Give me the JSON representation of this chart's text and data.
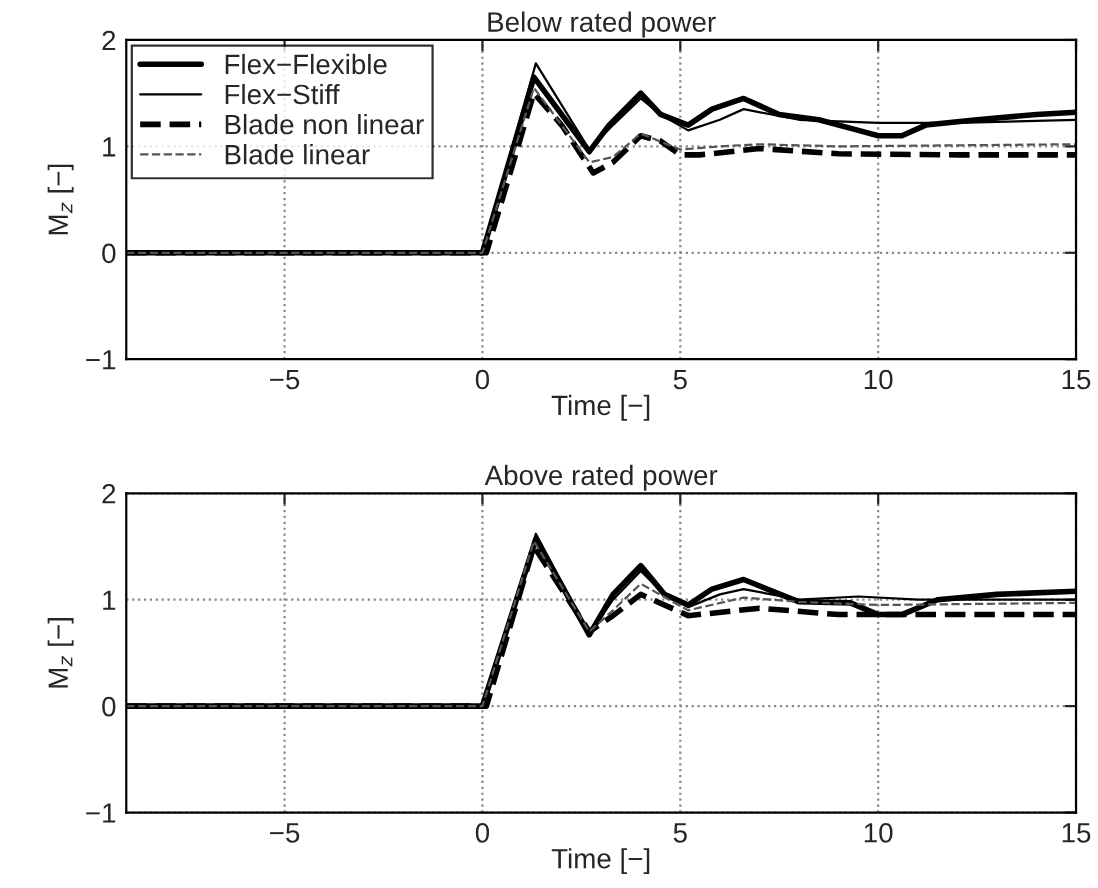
{
  "chart_data": [
    {
      "type": "line",
      "title": "Below rated power",
      "xlabel": "Time [−]",
      "ylabel": "M$_{z}$ [−]",
      "xlim": [
        -9,
        15
      ],
      "ylim": [
        -1,
        2
      ],
      "xticks": [
        {
          "value": -5,
          "label": "−5"
        },
        0,
        5,
        10,
        15
      ],
      "yticks": [
        {
          "value": -1,
          "label": "−1"
        },
        0,
        1,
        2
      ],
      "grid": true,
      "legend": "top left",
      "series": [
        {
          "name": "Flex−Flexible",
          "color": "#000000",
          "line_style": "solid",
          "x": [
            -9,
            0,
            1.3,
            2.7,
            3.2,
            4,
            4.5,
            5.2,
            5.8,
            6.6,
            7.5,
            8.5,
            9.5,
            10,
            10.6,
            11.2,
            12.5,
            14,
            15
          ],
          "values": [
            0,
            0,
            1.65,
            0.95,
            1.2,
            1.5,
            1.3,
            1.2,
            1.35,
            1.45,
            1.3,
            1.25,
            1.15,
            1.1,
            1.1,
            1.2,
            1.25,
            1.3,
            1.32
          ]
        },
        {
          "name": "Flex−Stiff",
          "color": "#000000",
          "line_style": "solid",
          "x": [
            -9,
            0,
            1.35,
            2.7,
            3.3,
            4,
            4.5,
            5.2,
            6,
            6.6,
            8,
            10,
            12,
            15
          ],
          "values": [
            0,
            0,
            1.78,
            0.97,
            1.2,
            1.45,
            1.3,
            1.15,
            1.25,
            1.35,
            1.25,
            1.22,
            1.22,
            1.25
          ]
        },
        {
          "name": "Blade non linear",
          "color": "#000000",
          "line_style": "dashed",
          "x": [
            -9,
            0.1,
            1.3,
            2,
            2.8,
            3.3,
            4,
            4.5,
            5,
            5.5,
            7,
            9,
            12,
            15
          ],
          "values": [
            0,
            0,
            1.5,
            1.2,
            0.75,
            0.85,
            1.1,
            1.05,
            0.92,
            0.92,
            0.98,
            0.93,
            0.92,
            0.92
          ]
        },
        {
          "name": "Blade linear",
          "color": "#555555",
          "line_style": "dashed",
          "x": [
            -9,
            0,
            1.3,
            2.7,
            3.3,
            4,
            5,
            6,
            7,
            9,
            15
          ],
          "values": [
            0,
            0,
            1.55,
            0.85,
            0.9,
            1.12,
            0.97,
            1.0,
            1.02,
            1.0,
            1.02
          ]
        }
      ]
    },
    {
      "type": "line",
      "title": "Above rated power",
      "xlabel": "Time [−]",
      "ylabel": "M$_{z}$ [−]",
      "xlim": [
        -9,
        15
      ],
      "ylim": [
        -1,
        2
      ],
      "xticks": [
        {
          "value": -5,
          "label": "−5"
        },
        0,
        5,
        10,
        15
      ],
      "yticks": [
        {
          "value": -1,
          "label": "−1"
        },
        0,
        1,
        2
      ],
      "grid": true,
      "series": [
        {
          "color": "#000000",
          "line_style": "solid",
          "x": [
            -9,
            0,
            1.35,
            2.7,
            3.3,
            4,
            4.6,
            5.2,
            5.8,
            6.6,
            8,
            9.3,
            10,
            10.6,
            11.5,
            13,
            15
          ],
          "values": [
            0,
            0,
            1.57,
            0.67,
            1.05,
            1.32,
            1.05,
            0.95,
            1.1,
            1.19,
            0.98,
            0.97,
            0.86,
            0.86,
            1.0,
            1.05,
            1.08
          ]
        },
        {
          "color": "#000000",
          "line_style": "solid",
          "x": [
            -9,
            0,
            1.35,
            2.7,
            3.3,
            4,
            4.6,
            5.2,
            6,
            6.6,
            8,
            9.5,
            11,
            15
          ],
          "values": [
            0,
            0,
            1.62,
            0.68,
            1.0,
            1.27,
            1.05,
            0.93,
            1.05,
            1.1,
            1.0,
            1.03,
            1.0,
            1.0
          ]
        },
        {
          "color": "#000000",
          "line_style": "dashed",
          "x": [
            -9,
            0.1,
            1.3,
            2.7,
            3.3,
            4,
            5.2,
            7,
            9,
            15
          ],
          "values": [
            0,
            0,
            1.5,
            0.7,
            0.85,
            1.05,
            0.85,
            0.92,
            0.86,
            0.86
          ]
        },
        {
          "color": "#555555",
          "line_style": "dashed",
          "x": [
            -9,
            0,
            1.3,
            2.7,
            3.3,
            4,
            5.2,
            6.6,
            8,
            10,
            15
          ],
          "values": [
            0,
            0,
            1.55,
            0.7,
            0.9,
            1.15,
            0.9,
            1.02,
            0.98,
            0.95,
            0.97
          ]
        }
      ]
    }
  ]
}
